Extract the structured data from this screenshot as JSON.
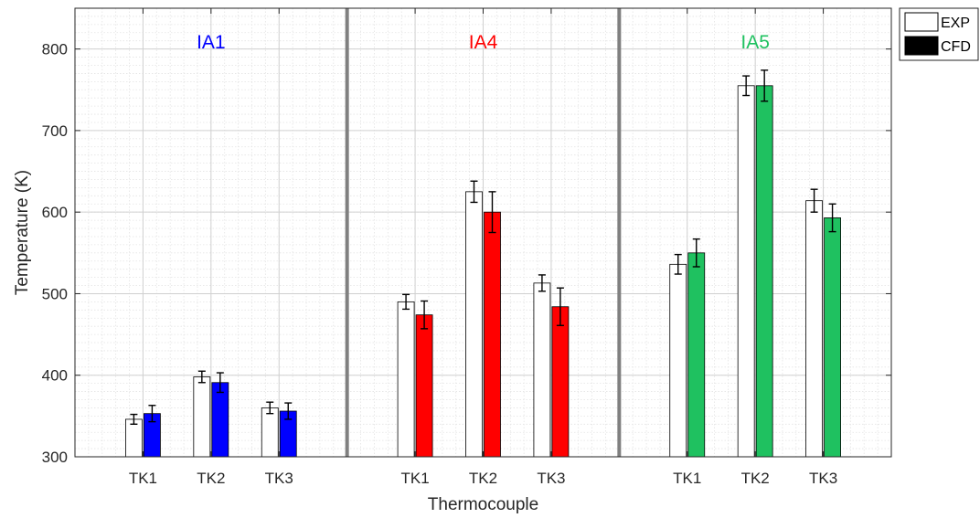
{
  "chart_data": {
    "type": "bar",
    "xlabel": "Thermocouple",
    "ylabel": "Temperature (K)",
    "ylim": [
      300,
      850
    ],
    "yticks": [
      300,
      400,
      500,
      600,
      700,
      800
    ],
    "grid": "major and minor",
    "legend": {
      "placement": "outside top-right",
      "entries": [
        {
          "label": "EXP",
          "fill": "#ffffff"
        },
        {
          "label": "CFD",
          "fill": "#000000"
        }
      ]
    },
    "groups": [
      {
        "title": "IA1",
        "color": "#0000ff",
        "categories": [
          "TK1",
          "TK2",
          "TK3"
        ],
        "series": [
          {
            "name": "EXP",
            "values": [
              346,
              398,
              360
            ],
            "errors": [
              6,
              7,
              7
            ]
          },
          {
            "name": "CFD",
            "values": [
              353,
              391,
              356
            ],
            "errors": [
              10,
              12,
              10
            ]
          }
        ]
      },
      {
        "title": "IA4",
        "color": "#ff0000",
        "categories": [
          "TK1",
          "TK2",
          "TK3"
        ],
        "series": [
          {
            "name": "EXP",
            "values": [
              490,
              625,
              513
            ],
            "errors": [
              9,
              13,
              10
            ]
          },
          {
            "name": "CFD",
            "values": [
              474,
              600,
              484
            ],
            "errors": [
              17,
              25,
              23
            ]
          }
        ]
      },
      {
        "title": "IA5",
        "color": "#1fc160",
        "categories": [
          "TK1",
          "TK2",
          "TK3"
        ],
        "series": [
          {
            "name": "EXP",
            "values": [
              536,
              755,
              614
            ],
            "errors": [
              12,
              12,
              14
            ]
          },
          {
            "name": "CFD",
            "values": [
              550,
              755,
              593
            ],
            "errors": [
              17,
              19,
              17
            ]
          }
        ]
      }
    ]
  }
}
